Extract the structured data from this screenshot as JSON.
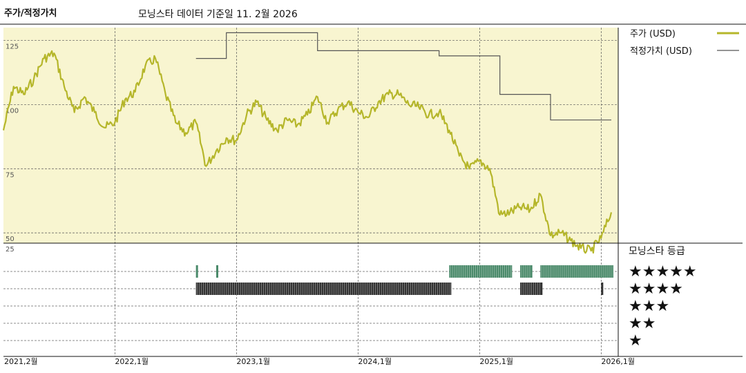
{
  "chart_data": {
    "type": "line",
    "title": "주가/적정가치",
    "subtitle": "모닝스타 데이터 기준일 11. 2월 2026",
    "x_tick_labels": [
      "2021,2월",
      "2022,1월",
      "2023,1월",
      "2024,1월",
      "2025,1월",
      "2026,1월"
    ],
    "y_tick_labels": [
      "125",
      "100",
      "75",
      "50",
      "25"
    ],
    "ylim": [
      25,
      130
    ],
    "grid": true,
    "legend_position": "right",
    "series": [
      {
        "name": "주가 (USD)",
        "color": "#b5b62a",
        "points": [
          [
            "2021-02",
            90
          ],
          [
            "2021-03",
            107
          ],
          [
            "2021-04",
            104
          ],
          [
            "2021-05",
            110
          ],
          [
            "2021-06",
            118
          ],
          [
            "2021-07",
            120
          ],
          [
            "2021-08",
            107
          ],
          [
            "2021-09",
            97
          ],
          [
            "2021-10",
            103
          ],
          [
            "2021-11",
            97
          ],
          [
            "2021-12",
            91
          ],
          [
            "2022-01",
            93
          ],
          [
            "2022-02",
            102
          ],
          [
            "2022-03",
            105
          ],
          [
            "2022-04",
            115
          ],
          [
            "2022-05",
            118
          ],
          [
            "2022-06",
            104
          ],
          [
            "2022-07",
            93
          ],
          [
            "2022-08",
            89
          ],
          [
            "2022-09",
            93
          ],
          [
            "2022-10",
            76
          ],
          [
            "2022-11",
            82
          ],
          [
            "2022-12",
            87
          ],
          [
            "2023-01",
            86
          ],
          [
            "2023-02",
            96
          ],
          [
            "2023-03",
            101
          ],
          [
            "2023-04",
            94
          ],
          [
            "2023-05",
            90
          ],
          [
            "2023-06",
            94
          ],
          [
            "2023-07",
            92
          ],
          [
            "2023-08",
            96
          ],
          [
            "2023-09",
            103
          ],
          [
            "2023-10",
            93
          ],
          [
            "2023-11",
            98
          ],
          [
            "2023-12",
            101
          ],
          [
            "2024-01",
            97
          ],
          [
            "2024-02",
            95
          ],
          [
            "2024-03",
            101
          ],
          [
            "2024-04",
            104
          ],
          [
            "2024-05",
            104
          ],
          [
            "2024-06",
            100
          ],
          [
            "2024-07",
            99
          ],
          [
            "2024-08",
            96
          ],
          [
            "2024-09",
            97
          ],
          [
            "2024-10",
            90
          ],
          [
            "2024-11",
            80
          ],
          [
            "2024-12",
            75
          ],
          [
            "2025-01",
            78
          ],
          [
            "2025-02",
            75
          ],
          [
            "2025-03",
            57
          ],
          [
            "2025-04",
            58
          ],
          [
            "2025-05",
            60
          ],
          [
            "2025-06",
            59
          ],
          [
            "2025-07",
            65
          ],
          [
            "2025-08",
            49
          ],
          [
            "2025-09",
            50
          ],
          [
            "2025-10",
            47
          ],
          [
            "2025-11",
            44
          ],
          [
            "2025-12",
            43
          ],
          [
            "2026-01",
            48
          ],
          [
            "2026-02",
            58
          ]
        ]
      },
      {
        "name": "적정가치 (USD)",
        "color": "#555555",
        "points": [
          [
            "2022-09",
            118
          ],
          [
            "2022-12",
            118
          ],
          [
            "2022-12",
            128
          ],
          [
            "2023-09",
            128
          ],
          [
            "2023-09",
            121
          ],
          [
            "2024-09",
            121
          ],
          [
            "2024-09",
            119
          ],
          [
            "2025-03",
            119
          ],
          [
            "2025-03",
            104
          ],
          [
            "2025-08",
            104
          ],
          [
            "2025-08",
            94
          ],
          [
            "2026-02",
            94
          ]
        ]
      }
    ],
    "rating_panel": {
      "title": "모닝스타 등급",
      "levels": [
        "★★★★★",
        "★★★★",
        "★★★",
        "★★",
        "★"
      ],
      "periods": [
        {
          "stars": 5,
          "from": "2022-09",
          "to": "2022-09"
        },
        {
          "stars": 5,
          "from": "2022-11",
          "to": "2022-11"
        },
        {
          "stars": 4,
          "from": "2022-09",
          "to": "2024-10"
        },
        {
          "stars": 5,
          "from": "2024-10",
          "to": "2025-04"
        },
        {
          "stars": 5,
          "from": "2025-05",
          "to": "2025-06"
        },
        {
          "stars": 5,
          "from": "2025-07",
          "to": "2025-08"
        },
        {
          "stars": 5,
          "from": "2025-08",
          "to": "2026-02"
        },
        {
          "stars": 4,
          "from": "2025-05",
          "to": "2025-06"
        },
        {
          "stars": 4,
          "from": "2025-06",
          "to": "2025-07"
        },
        {
          "stars": 4,
          "from": "2026-01",
          "to": "2026-01"
        }
      ],
      "colors": {
        "5": "#4a8a6a",
        "4": "#333333"
      }
    },
    "plot_background": "#f8f5d0"
  }
}
